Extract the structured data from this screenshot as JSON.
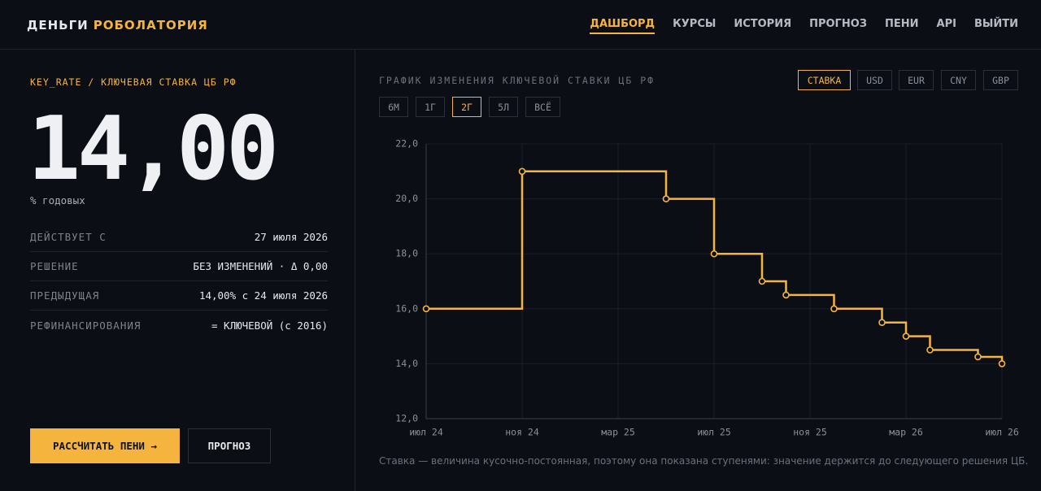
{
  "header": {
    "brand": "ДЕНЬГИ",
    "brand_accent": "РОБОЛАТОРИЯ",
    "nav": [
      "ДАШБОРД",
      "КУРСЫ",
      "ИСТОРИЯ",
      "ПРОГНОЗ",
      "ПЕНИ",
      "API",
      "ВЫЙТИ"
    ]
  },
  "summary": {
    "code": "KEY_RATE / КЛЮЧЕВАЯ СТАВКА ЦБ РФ",
    "value": "14,00",
    "unit": "% годовых",
    "rows": [
      [
        "ДЕЙСТВУЕТ С",
        "27 июля 2026"
      ],
      [
        "РЕШЕНИЕ",
        "БЕЗ ИЗМЕНЕНИЙ · Δ 0,00"
      ],
      [
        "ПРЕДЫДУЩАЯ",
        "14,00% с 24 июля 2026"
      ],
      [
        "РЕФИНАНСИРОВАНИЯ",
        "= КЛЮЧЕВОЙ (с 2016)"
      ]
    ],
    "buttons": [
      "РАССЧИТАТЬ ПЕНИ →",
      "ПРОГНОЗ"
    ]
  },
  "tabs": {
    "series": [
      "СТАВКА",
      "USD",
      "EUR",
      "CNY",
      "GBP"
    ],
    "periods": [
      "6М",
      "1Г",
      "2Г",
      "5Л",
      "ВСЁ"
    ]
  },
  "note": "Ставка — величина кусочно-постоянная, поэтому она показана ступенями: значение держится до следующего решения ЦБ.",
  "chart_data": {
    "type": "step",
    "title": "ГРАФИК ИЗМЕНЕНИЯ КЛЮЧЕВОЙ СТАВКИ ЦБ РФ",
    "color": "#f4b43e",
    "x": [
      "2024-07",
      "2024-11",
      "2025-05",
      "2025-07",
      "2025-09",
      "2025-10",
      "2025-12",
      "2026-02",
      "2026-03",
      "2026-04",
      "2026-06",
      "2026-07"
    ],
    "values": [
      16,
      21,
      20,
      18,
      17,
      16.5,
      16,
      15.5,
      15,
      14.5,
      14.25,
      14
    ],
    "xlim": [
      "2024-07",
      "2026-07"
    ],
    "xticks": [
      {
        "value": "2024-07",
        "label": "июл 24"
      },
      {
        "value": "2024-11",
        "label": "ноя 24"
      },
      {
        "value": "2025-03",
        "label": "мар 25"
      },
      {
        "value": "2025-07",
        "label": "июл 25"
      },
      {
        "value": "2025-11",
        "label": "ноя 25"
      },
      {
        "value": "2026-03",
        "label": "мар 26"
      },
      {
        "value": "2026-07",
        "label": "июл 26"
      }
    ],
    "ylim": [
      12,
      22
    ],
    "yticks": [
      {
        "value": 12,
        "label": "12,0"
      },
      {
        "value": 14,
        "label": "14,0"
      },
      {
        "value": 16,
        "label": "16,0"
      },
      {
        "value": 18,
        "label": "18,0"
      },
      {
        "value": 20,
        "label": "20,0"
      },
      {
        "value": 22,
        "label": "22,0"
      }
    ],
    "grid": true
  }
}
